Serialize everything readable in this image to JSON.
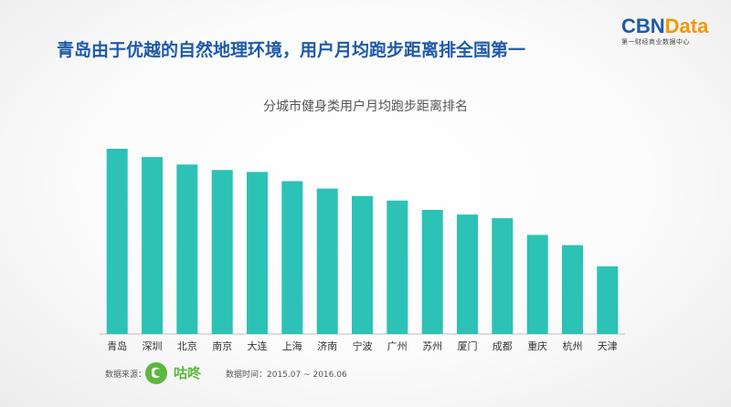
{
  "header": {
    "title": "青岛由于优越的自然地理环境，用户月均跑步距离排全国第一"
  },
  "logo": {
    "main_prefix": "CBN",
    "main_suffix": "Data",
    "subtitle": "第一财经商业数据中心"
  },
  "footer": {
    "source_label": "数据来源：",
    "source_brand": "咕咚",
    "source_icon": "gudong-logo-icon",
    "time_label": "数据时间：2015.07 ~ 2016.06"
  },
  "colors": {
    "bar": "#2cc2b5",
    "title": "#1e5aa8",
    "accent": "#f39800",
    "brand_green": "#5cb83d"
  },
  "chart_data": {
    "type": "bar",
    "title": "分城市健身类用户月均跑步距离排名",
    "xlabel": "",
    "ylabel": "",
    "categories": [
      "青岛",
      "深圳",
      "北京",
      "南京",
      "大连",
      "上海",
      "济南",
      "宁波",
      "广州",
      "苏州",
      "厦门",
      "成都",
      "重庆",
      "杭州",
      "天津"
    ],
    "values": [
      100,
      95.5,
      91.5,
      88.5,
      87.5,
      82.5,
      78.5,
      74.5,
      72,
      67,
      64.5,
      62.5,
      53.5,
      48,
      36.5
    ],
    "ylim": [
      0,
      100
    ],
    "grid": false,
    "legend": "none"
  }
}
